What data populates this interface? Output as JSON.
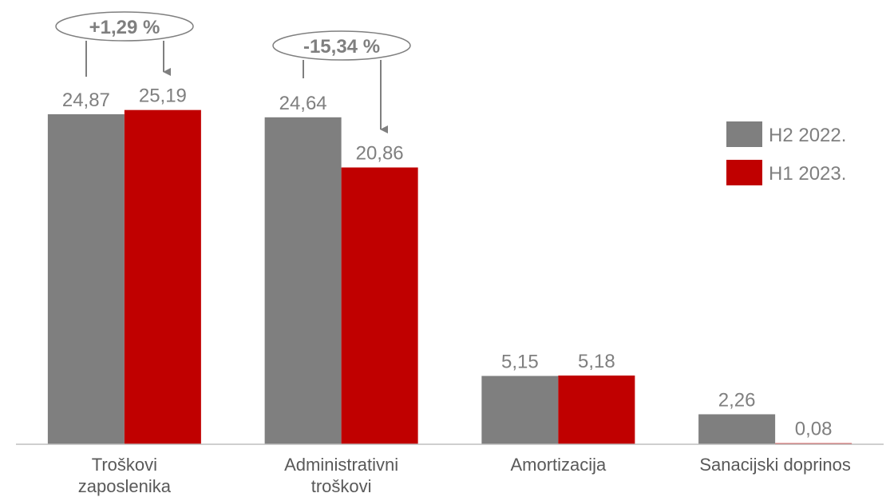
{
  "chart_data": {
    "type": "bar",
    "categories": [
      "Troškovi\nzaposlenika",
      "Administrativni\ntroškovi",
      "Amortizacija",
      "Sanacijski doprinos"
    ],
    "series": [
      {
        "name": "H2 2022.",
        "color": "#7f7f7f",
        "values": [
          24.87,
          24.64,
          5.15,
          2.26
        ],
        "value_labels": [
          "24,87",
          "24,64",
          "5,15",
          "2,26"
        ]
      },
      {
        "name": "H1 2023.",
        "color": "#c00000",
        "values": [
          25.19,
          20.86,
          5.18,
          0.08
        ],
        "value_labels": [
          "25,19",
          "20,86",
          "5,18",
          "0,08"
        ]
      }
    ],
    "ylim": [
      0,
      28
    ],
    "annotations": [
      "+1,29 %",
      "-15,34 %"
    ],
    "legend": "right"
  }
}
